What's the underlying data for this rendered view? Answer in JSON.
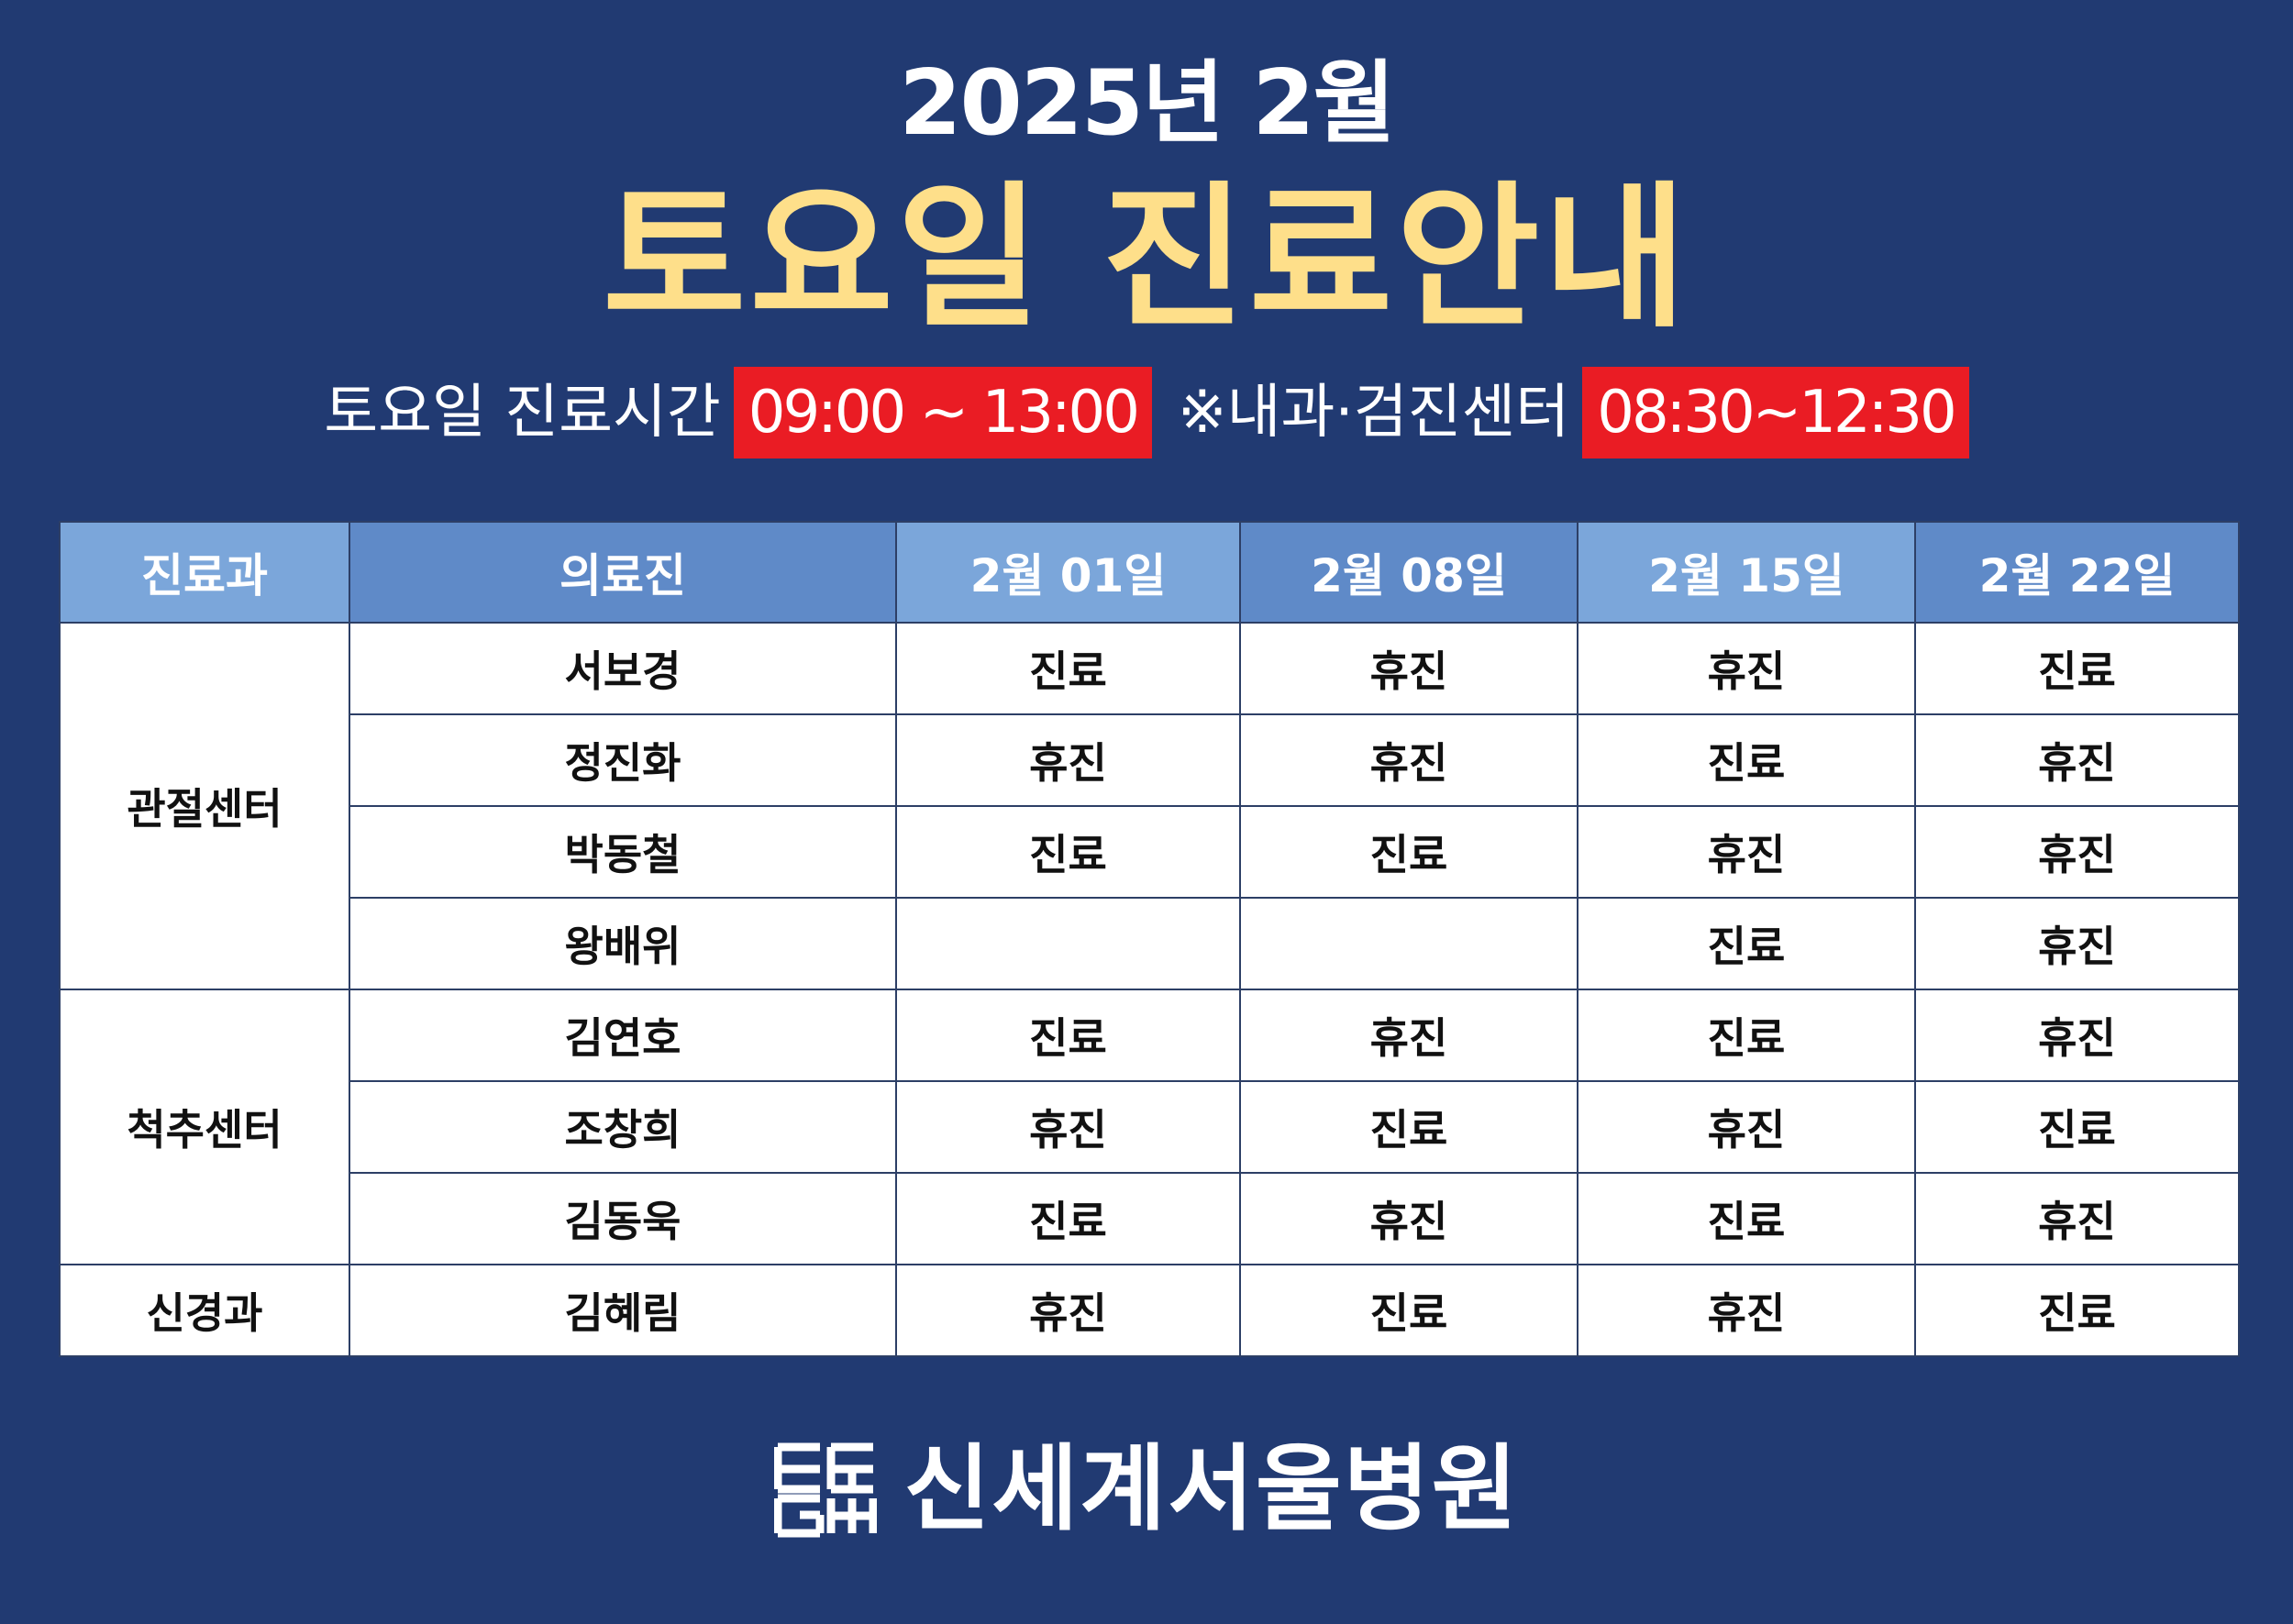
{
  "header": {
    "year_month": "2025년 2월",
    "title": "토요일 진료안내"
  },
  "hours": {
    "label": "토요일 진료시간",
    "time": "09:00 ~ 13:00",
    "note": "※내과·검진센터",
    "note_time": "08:30~12:30"
  },
  "table": {
    "headers": {
      "dept": "진료과",
      "doctor": "의료진",
      "dates": [
        "2월 01일",
        "2월 08일",
        "2월 15일",
        "2월 22일"
      ]
    },
    "departments": [
      {
        "name": "관절센터",
        "doctors": [
          {
            "name": "서보경",
            "schedule": [
              "진료",
              "휴진",
              "휴진",
              "진료"
            ]
          },
          {
            "name": "정진화",
            "schedule": [
              "휴진",
              "휴진",
              "진료",
              "휴진"
            ]
          },
          {
            "name": "박동철",
            "schedule": [
              "진료",
              "진료",
              "휴진",
              "휴진"
            ]
          },
          {
            "name": "왕배위",
            "schedule": [
              "",
              "",
              "진료",
              "휴진"
            ]
          }
        ]
      },
      {
        "name": "척추센터",
        "doctors": [
          {
            "name": "김연호",
            "schedule": [
              "진료",
              "휴진",
              "진료",
              "휴진"
            ]
          },
          {
            "name": "조창희",
            "schedule": [
              "휴진",
              "진료",
              "휴진",
              "진료"
            ]
          },
          {
            "name": "김동욱",
            "schedule": [
              "진료",
              "휴진",
              "진료",
              "휴진"
            ]
          }
        ]
      },
      {
        "name": "신경과",
        "doctors": [
          {
            "name": "김혜림",
            "schedule": [
              "휴진",
              "진료",
              "휴진",
              "진료"
            ]
          }
        ]
      }
    ]
  },
  "footer": {
    "hospital_name": "신세계서울병원",
    "logo_icon": "hospital-logo-icon"
  },
  "colors": {
    "background": "#213a72",
    "title_yellow": "#fedf8a",
    "highlight_red": "#ea1c24",
    "open_yellow": "#fff200",
    "closed_red": "#e01515"
  }
}
